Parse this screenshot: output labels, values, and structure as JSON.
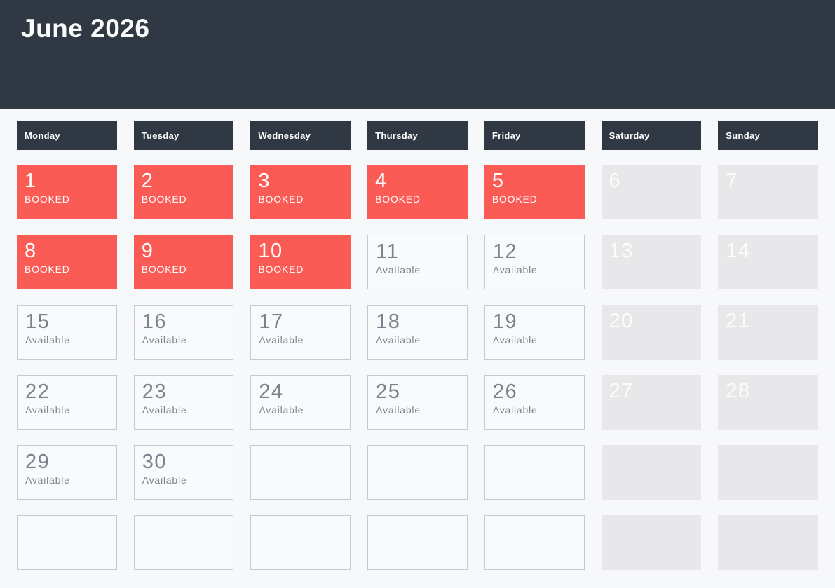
{
  "header": {
    "title": "June 2026"
  },
  "weekdays": [
    "Monday",
    "Tuesday",
    "Wednesday",
    "Thursday",
    "Friday",
    "Saturday",
    "Sunday"
  ],
  "status_labels": {
    "booked": "BOOKED",
    "available": "Available"
  },
  "calendar": {
    "cells": [
      {
        "day": "1",
        "status": "BOOKED",
        "type": "booked"
      },
      {
        "day": "2",
        "status": "BOOKED",
        "type": "booked"
      },
      {
        "day": "3",
        "status": "BOOKED",
        "type": "booked"
      },
      {
        "day": "4",
        "status": "BOOKED",
        "type": "booked"
      },
      {
        "day": "5",
        "status": "BOOKED",
        "type": "booked"
      },
      {
        "day": "6",
        "status": "",
        "type": "weekend"
      },
      {
        "day": "7",
        "status": "",
        "type": "weekend"
      },
      {
        "day": "8",
        "status": "BOOKED",
        "type": "booked"
      },
      {
        "day": "9",
        "status": "BOOKED",
        "type": "booked"
      },
      {
        "day": "10",
        "status": "BOOKED",
        "type": "booked"
      },
      {
        "day": "11",
        "status": "Available",
        "type": "available"
      },
      {
        "day": "12",
        "status": "Available",
        "type": "available"
      },
      {
        "day": "13",
        "status": "",
        "type": "weekend"
      },
      {
        "day": "14",
        "status": "",
        "type": "weekend"
      },
      {
        "day": "15",
        "status": "Available",
        "type": "available"
      },
      {
        "day": "16",
        "status": "Available",
        "type": "available"
      },
      {
        "day": "17",
        "status": "Available",
        "type": "available"
      },
      {
        "day": "18",
        "status": "Available",
        "type": "available"
      },
      {
        "day": "19",
        "status": "Available",
        "type": "available"
      },
      {
        "day": "20",
        "status": "",
        "type": "weekend"
      },
      {
        "day": "21",
        "status": "",
        "type": "weekend"
      },
      {
        "day": "22",
        "status": "Available",
        "type": "available"
      },
      {
        "day": "23",
        "status": "Available",
        "type": "available"
      },
      {
        "day": "24",
        "status": "Available",
        "type": "available"
      },
      {
        "day": "25",
        "status": "Available",
        "type": "available"
      },
      {
        "day": "26",
        "status": "Available",
        "type": "available"
      },
      {
        "day": "27",
        "status": "",
        "type": "weekend"
      },
      {
        "day": "28",
        "status": "",
        "type": "weekend"
      },
      {
        "day": "29",
        "status": "Available",
        "type": "available"
      },
      {
        "day": "30",
        "status": "Available",
        "type": "available"
      },
      {
        "day": "",
        "status": "",
        "type": "empty"
      },
      {
        "day": "",
        "status": "",
        "type": "empty"
      },
      {
        "day": "",
        "status": "",
        "type": "empty"
      },
      {
        "day": "",
        "status": "",
        "type": "weekend-empty"
      },
      {
        "day": "",
        "status": "",
        "type": "weekend-empty"
      },
      {
        "day": "",
        "status": "",
        "type": "empty"
      },
      {
        "day": "",
        "status": "",
        "type": "empty"
      },
      {
        "day": "",
        "status": "",
        "type": "empty"
      },
      {
        "day": "",
        "status": "",
        "type": "empty"
      },
      {
        "day": "",
        "status": "",
        "type": "empty"
      },
      {
        "day": "",
        "status": "",
        "type": "weekend-empty"
      },
      {
        "day": "",
        "status": "",
        "type": "weekend-empty"
      }
    ]
  },
  "colors": {
    "page_bg": "#F7F8FA",
    "header_bg": "#303843",
    "booked_bg": "#FA5B55",
    "weekend_bg": "#E8E8EA",
    "available_border": "#C6C9D0",
    "available_text": "#7B828E"
  }
}
